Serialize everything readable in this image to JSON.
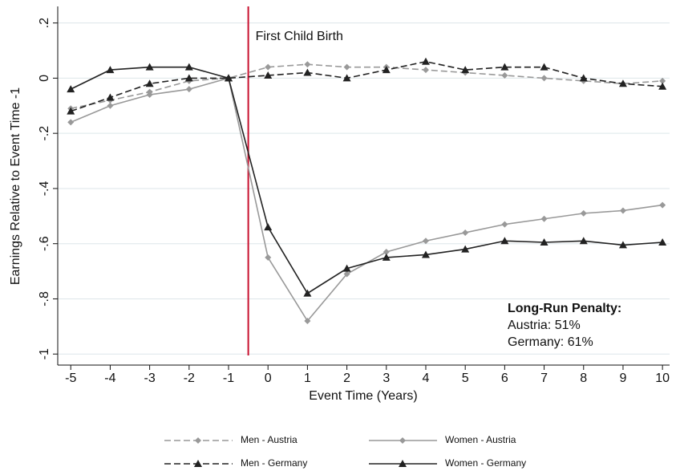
{
  "chart_data": {
    "type": "line",
    "xlabel": "Event Time (Years)",
    "ylabel": "Earnings Relative to Event Time -1",
    "x": [
      -5,
      -4,
      -3,
      -2,
      -1,
      0,
      1,
      2,
      3,
      4,
      5,
      6,
      7,
      8,
      9,
      10
    ],
    "xlim": [
      -5.33,
      10.18
    ],
    "xticks": [
      -5,
      -4,
      -3,
      -2,
      -1,
      0,
      1,
      2,
      3,
      4,
      5,
      6,
      7,
      8,
      9,
      10
    ],
    "ylim": [
      -1.04,
      0.26
    ],
    "yticks": [
      {
        "value": 0.2,
        "label": ".2"
      },
      0,
      {
        "value": -0.2,
        "label": "-.2"
      },
      {
        "value": -0.4,
        "label": "-.4"
      },
      {
        "value": -0.6,
        "label": "-.6"
      },
      {
        "value": -0.8,
        "label": "-.8"
      },
      -1
    ],
    "grid": true,
    "vline": {
      "x": -0.5,
      "label": "First Child Birth",
      "color": "#c8102e"
    },
    "note": [
      "Long-Run Penalty:",
      "Austria: 51%",
      "Germany: 61%"
    ],
    "series": [
      {
        "name": "Men - Austria",
        "color": "#999999",
        "dashed": true,
        "marker": "diamond",
        "values": [
          -0.11,
          -0.08,
          -0.05,
          -0.01,
          0,
          0.04,
          0.05,
          0.04,
          0.04,
          0.03,
          0.02,
          0.01,
          0.0,
          -0.01,
          -0.02,
          -0.01
        ]
      },
      {
        "name": "Women - Austria",
        "color": "#999999",
        "dashed": false,
        "marker": "diamond",
        "values": [
          -0.16,
          -0.1,
          -0.06,
          -0.04,
          0,
          -0.65,
          -0.88,
          -0.71,
          -0.63,
          -0.59,
          -0.56,
          -0.53,
          -0.51,
          -0.49,
          -0.48,
          -0.46
        ]
      },
      {
        "name": "Men - Germany",
        "color": "#222222",
        "dashed": true,
        "marker": "triangle",
        "values": [
          -0.12,
          -0.07,
          -0.02,
          0.0,
          0,
          0.01,
          0.02,
          0.0,
          0.03,
          0.06,
          0.03,
          0.04,
          0.04,
          0.0,
          -0.02,
          -0.03
        ]
      },
      {
        "name": "Women - Germany",
        "color": "#222222",
        "dashed": false,
        "marker": "triangle",
        "values": [
          -0.04,
          0.03,
          0.04,
          0.04,
          0,
          -0.54,
          -0.78,
          -0.69,
          -0.65,
          -0.64,
          -0.62,
          -0.59,
          -0.595,
          -0.59,
          -0.605,
          -0.595
        ]
      }
    ]
  }
}
